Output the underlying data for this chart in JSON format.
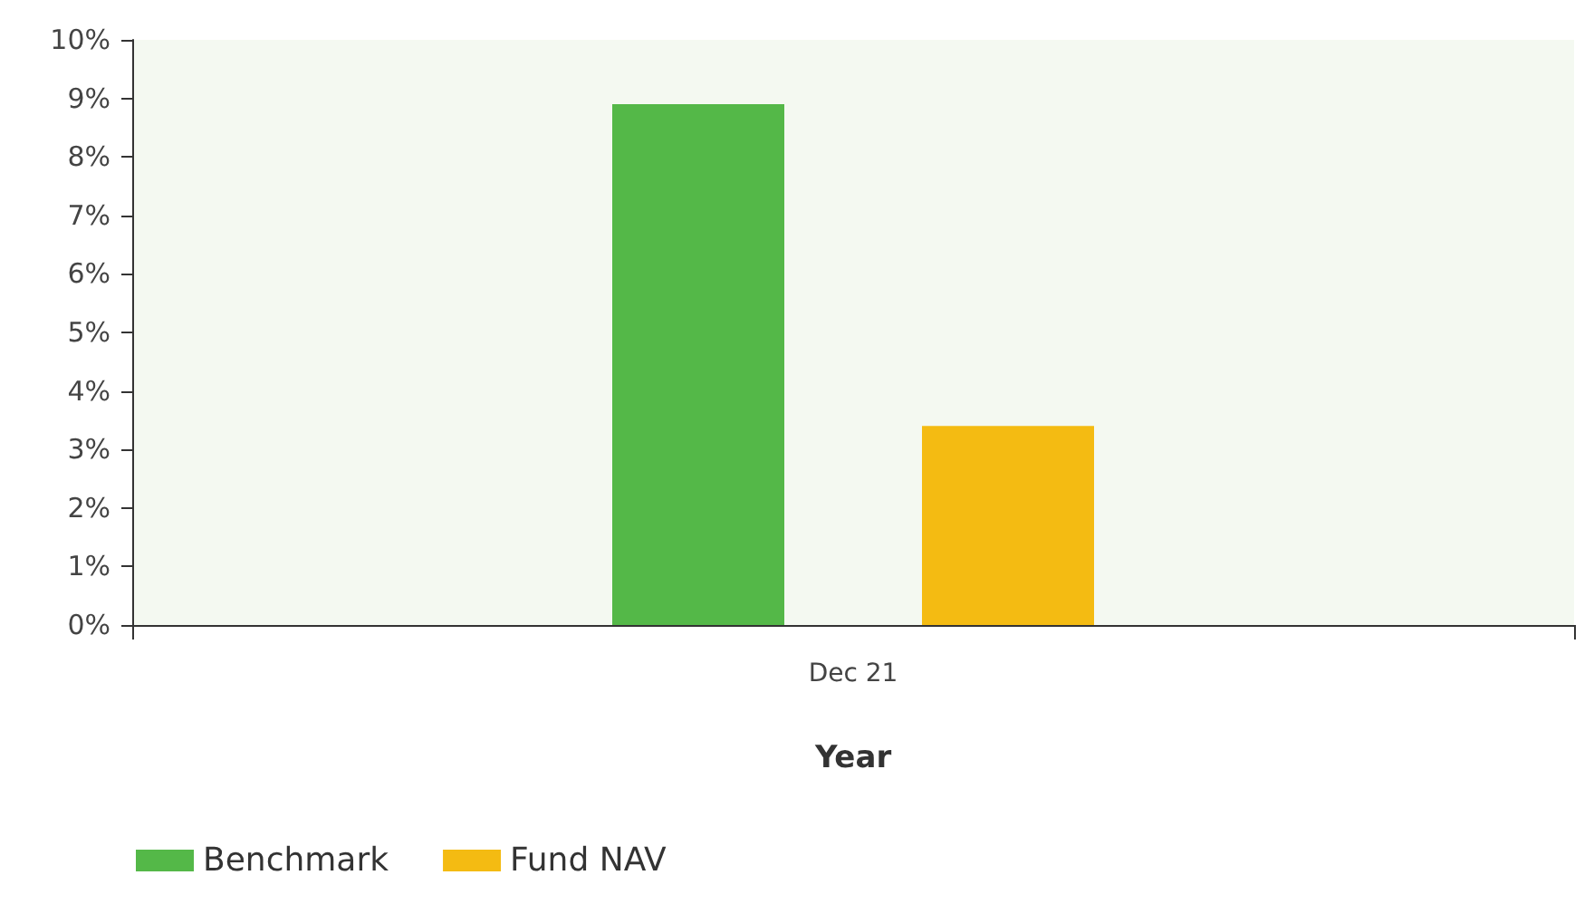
{
  "chart_data": {
    "type": "bar",
    "xlabel": "Year",
    "categories": [
      "Dec 21"
    ],
    "series": [
      {
        "name": "Benchmark",
        "color": "#54b848",
        "values": [
          8.9
        ]
      },
      {
        "name": "Fund NAV",
        "color": "#f4bb12",
        "values": [
          3.4
        ]
      }
    ],
    "ylim": [
      0,
      10
    ],
    "yticks": [
      {
        "value": 0,
        "label": "0%"
      },
      {
        "value": 1,
        "label": "1%"
      },
      {
        "value": 2,
        "label": "2%"
      },
      {
        "value": 3,
        "label": "3%"
      },
      {
        "value": 4,
        "label": "4%"
      },
      {
        "value": 5,
        "label": "5%"
      },
      {
        "value": 6,
        "label": "6%"
      },
      {
        "value": 7,
        "label": "7%"
      },
      {
        "value": 8,
        "label": "8%"
      },
      {
        "value": 9,
        "label": "9%"
      },
      {
        "value": 10,
        "label": "10%"
      }
    ],
    "grid": false,
    "legend": "bottom left"
  }
}
